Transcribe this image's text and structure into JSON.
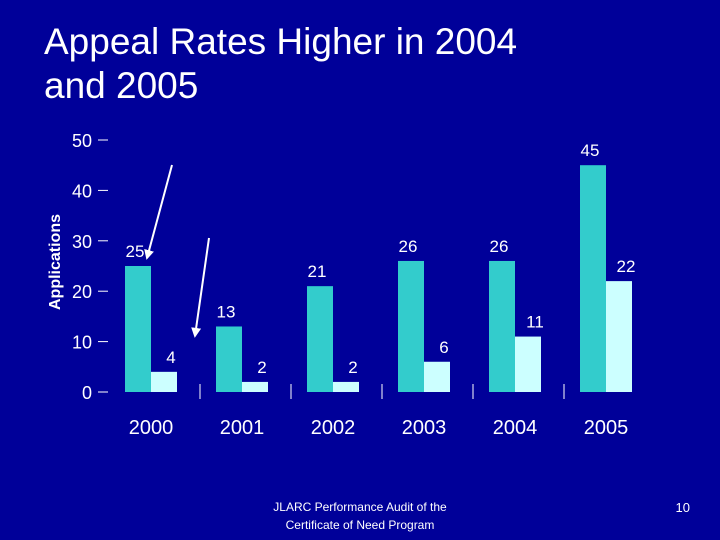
{
  "slide": {
    "title_line1": "Appeal Rates Higher in 2004",
    "title_line2": "and 2005",
    "footer_line1": "JLARC Performance Audit of the",
    "footer_line2": "Certificate of Need Program",
    "page_number": "10"
  },
  "colors": {
    "background": "#000099",
    "series_1": "#33CCCC",
    "series_2": "#CCFFFF",
    "text": "#FFFFFF"
  },
  "chart_data": {
    "type": "bar",
    "ylabel": "Applications",
    "xlabel": "",
    "ylim": [
      0,
      50
    ],
    "yticks": [
      0,
      10,
      20,
      30,
      40,
      50
    ],
    "grid": false,
    "categories": [
      "2000",
      "2001",
      "2002",
      "2003",
      "2004",
      "2005"
    ],
    "series": [
      {
        "values": [
          25,
          13,
          21,
          26,
          26,
          45
        ]
      },
      {
        "values": [
          4,
          2,
          2,
          6,
          11,
          22
        ]
      }
    ],
    "annotations": [
      {
        "type": "arrow",
        "target_category": "2000",
        "target_series": 0,
        "target_value": 25
      },
      {
        "type": "arrow",
        "target_category": "2000",
        "target_series": 1,
        "target_value": 4
      }
    ]
  }
}
